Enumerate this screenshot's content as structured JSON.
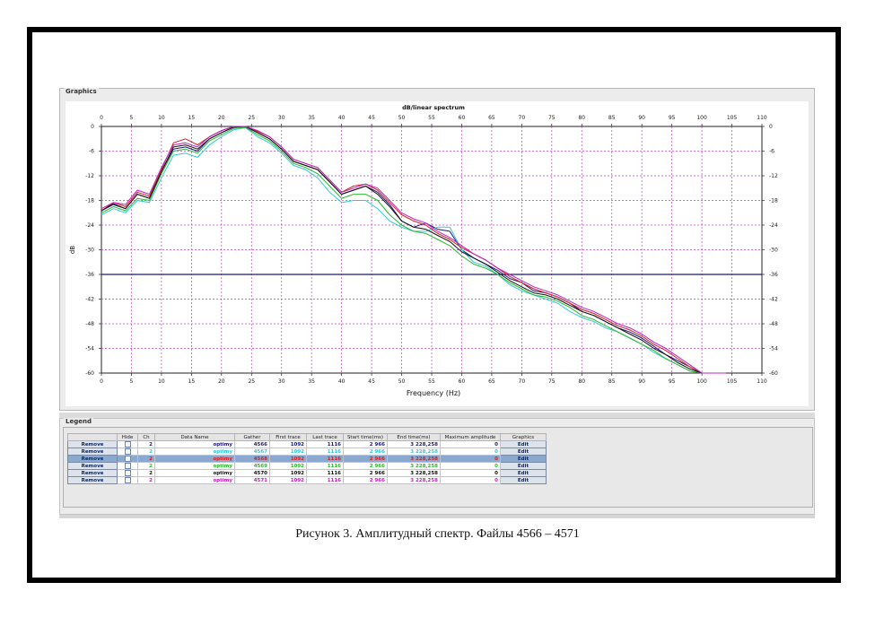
{
  "graphics_panel": {
    "title": "Graphics"
  },
  "legend_panel": {
    "title": "Legend",
    "columns": [
      "",
      "Hide",
      "Ch",
      "Data Name",
      "Gather",
      "First trace",
      "Last trace",
      "Start time(ms)",
      "End time(ms)",
      "Maximum amplitude",
      "Graphics"
    ],
    "rows": [
      {
        "remove": "Remove",
        "ch": "2",
        "data_name": "optimy",
        "gather": "4566",
        "first_trace": "1092",
        "last_trace": "1116",
        "start_time": "2 966",
        "end_time": "3 228,258",
        "max_amp": "0",
        "graphics": "Edit",
        "color": "#1a1a7a",
        "selected": false
      },
      {
        "remove": "Remove",
        "ch": "2",
        "data_name": "optimy",
        "gather": "4567",
        "first_trace": "1092",
        "last_trace": "1116",
        "start_time": "2 966",
        "end_time": "3 228,258",
        "max_amp": "0",
        "graphics": "Edit",
        "color": "#2fc8d8",
        "selected": false
      },
      {
        "remove": "Remove",
        "ch": "2",
        "data_name": "optimy",
        "gather": "4568",
        "first_trace": "1092",
        "last_trace": "1116",
        "start_time": "2 966",
        "end_time": "3 228,258",
        "max_amp": "0",
        "graphics": "Edit",
        "color": "#d81e1e",
        "selected": true
      },
      {
        "remove": "Remove",
        "ch": "2",
        "data_name": "optimy",
        "gather": "4569",
        "first_trace": "1092",
        "last_trace": "1116",
        "start_time": "2 966",
        "end_time": "3 228,258",
        "max_amp": "0",
        "graphics": "Edit",
        "color": "#2cb82c",
        "selected": false
      },
      {
        "remove": "Remove",
        "ch": "2",
        "data_name": "optimy",
        "gather": "4570",
        "first_trace": "1092",
        "last_trace": "1116",
        "start_time": "2 966",
        "end_time": "3 228,258",
        "max_amp": "0",
        "graphics": "Edit",
        "color": "#111111",
        "selected": false
      },
      {
        "remove": "Remove",
        "ch": "2",
        "data_name": "optimy",
        "gather": "4571",
        "first_trace": "1092",
        "last_trace": "1116",
        "start_time": "2 966",
        "end_time": "3 228,258",
        "max_amp": "0",
        "graphics": "Edit",
        "color": "#c020c0",
        "selected": false
      }
    ]
  },
  "caption": "Рисунок 3. Амплитудный спектр. Файлы 4566 – 4571",
  "chart_data": {
    "type": "line",
    "title": "dB/linear spectrum",
    "xlabel": "Frequency (Hz)",
    "ylabel": "dB",
    "xlim": [
      0,
      110
    ],
    "ylim": [
      -60,
      0
    ],
    "xticks": [
      0,
      5,
      10,
      15,
      20,
      25,
      30,
      35,
      40,
      45,
      50,
      55,
      60,
      65,
      70,
      75,
      80,
      85,
      90,
      95,
      100,
      105,
      110
    ],
    "yticks": [
      0,
      -6,
      -12,
      -18,
      -24,
      -30,
      -36,
      -42,
      -48,
      -54,
      -60
    ],
    "grid": true,
    "reference_line": {
      "y": -36,
      "color": "#1a1a7a"
    },
    "x": [
      0,
      2,
      4,
      6,
      8,
      10,
      12,
      14,
      16,
      18,
      20,
      22,
      24,
      26,
      28,
      30,
      32,
      34,
      36,
      38,
      40,
      42,
      44,
      46,
      48,
      50,
      52,
      54,
      56,
      58,
      60,
      62,
      64,
      66,
      68,
      70,
      72,
      74,
      76,
      78,
      80,
      82,
      84,
      86,
      88,
      90,
      92,
      94,
      96,
      98,
      100,
      102,
      104
    ],
    "series": [
      {
        "name": "4566",
        "color": "#1a1a7a",
        "values": [
          -20.5,
          -19,
          -20,
          -16.5,
          -17.5,
          -11,
          -5.5,
          -5,
          -6,
          -3,
          -1.5,
          -0.2,
          0,
          -1.5,
          -3,
          -5.5,
          -8.5,
          -9.5,
          -10.5,
          -13.5,
          -16.5,
          -15.5,
          -14.5,
          -16,
          -19,
          -23,
          -24.5,
          -23.5,
          -25,
          -25.5,
          -30,
          -32,
          -33.5,
          -35,
          -37,
          -38,
          -40,
          -40.5,
          -41.5,
          -43,
          -45,
          -46,
          -47.5,
          -49,
          -50,
          -51.5,
          -53.5,
          -55.5,
          -57,
          -58.5,
          -60,
          -60,
          -60
        ]
      },
      {
        "name": "4567",
        "color": "#2fc8d8",
        "values": [
          -21.5,
          -20,
          -21,
          -18,
          -18.5,
          -12.5,
          -7,
          -6.5,
          -7.5,
          -4.5,
          -2.5,
          -0.8,
          -0.3,
          -2.5,
          -4,
          -6.5,
          -9.5,
          -10.5,
          -12.5,
          -16,
          -18.5,
          -18,
          -18,
          -20,
          -23,
          -24.5,
          -25.5,
          -25.5,
          -24.5,
          -24.5,
          -30,
          -33,
          -34,
          -36,
          -38.5,
          -40,
          -41,
          -42,
          -43,
          -45,
          -46.5,
          -47.5,
          -49,
          -50,
          -51.5,
          -53,
          -55,
          -56.5,
          -58,
          -59.5,
          -60,
          -60,
          -60
        ]
      },
      {
        "name": "4568",
        "color": "#d81e1e",
        "values": [
          -20.5,
          -18.5,
          -19.5,
          -16,
          -17,
          -10.5,
          -4,
          -3,
          -4.5,
          -2.5,
          -1,
          0,
          0,
          -1.2,
          -2.5,
          -5,
          -8,
          -9,
          -10,
          -13,
          -16,
          -14.5,
          -14,
          -15.5,
          -18.5,
          -21.5,
          -23,
          -24,
          -26,
          -27.5,
          -29.5,
          -31,
          -32.5,
          -34.5,
          -36.5,
          -38,
          -39.5,
          -40.5,
          -41.5,
          -43,
          -44.5,
          -45.5,
          -47,
          -48.5,
          -49.5,
          -51,
          -53,
          -54.5,
          -56.5,
          -58.5,
          -60,
          -60,
          -60
        ]
      },
      {
        "name": "4569",
        "color": "#2cb82c",
        "values": [
          -21,
          -19.5,
          -20.5,
          -17.5,
          -18,
          -11.5,
          -6,
          -5.5,
          -6.5,
          -3.5,
          -2,
          -0.5,
          -0.2,
          -2,
          -3.5,
          -6,
          -9,
          -10,
          -11.5,
          -14.5,
          -17.5,
          -16.5,
          -16.5,
          -18,
          -21.5,
          -24,
          -25.5,
          -26,
          -27.5,
          -29,
          -31.5,
          -33.5,
          -34.5,
          -36,
          -38,
          -39.5,
          -41,
          -41.5,
          -42.5,
          -44,
          -46,
          -47,
          -48.5,
          -50,
          -51.5,
          -53,
          -54.5,
          -56.5,
          -58,
          -59.5,
          -60,
          -60,
          -60
        ]
      },
      {
        "name": "4570",
        "color": "#111111",
        "values": [
          -20.5,
          -18.8,
          -20,
          -16.5,
          -17.5,
          -11,
          -5,
          -4.5,
          -5.5,
          -3,
          -1.5,
          -0.2,
          0,
          -1.5,
          -3,
          -5.5,
          -8.5,
          -9.5,
          -10.5,
          -13.5,
          -16.5,
          -15.5,
          -14.5,
          -16.5,
          -19.5,
          -23,
          -24.5,
          -25,
          -26.5,
          -28,
          -30.5,
          -32,
          -33.5,
          -35.5,
          -37.5,
          -39,
          -40.5,
          -41,
          -42,
          -43.5,
          -45,
          -46,
          -47.5,
          -49,
          -50.5,
          -52,
          -54,
          -55.5,
          -57.5,
          -59,
          -60,
          -60,
          -60
        ]
      },
      {
        "name": "4571",
        "color": "#c020c0",
        "values": [
          -20,
          -18.5,
          -19,
          -15.5,
          -16.5,
          -10,
          -4.5,
          -4,
          -5,
          -2.5,
          -1,
          0,
          0,
          -1,
          -2.5,
          -5,
          -8,
          -9,
          -10,
          -13,
          -16,
          -15,
          -14,
          -15,
          -18,
          -21,
          -22.5,
          -23.5,
          -25.5,
          -27,
          -29,
          -31,
          -32.5,
          -34.5,
          -36,
          -37.5,
          -39,
          -40,
          -41,
          -42.5,
          -44,
          -45,
          -46.5,
          -48,
          -49,
          -50.5,
          -52.5,
          -54,
          -56,
          -58,
          -60,
          -60,
          -60
        ]
      }
    ]
  }
}
